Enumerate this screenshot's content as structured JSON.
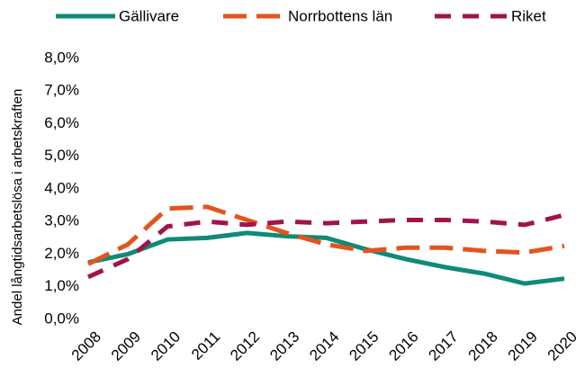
{
  "chart_data": {
    "type": "line",
    "ylabel": "Andel långtidsarbetslösa i arbetskraften",
    "categories": [
      "2008",
      "2009",
      "2010",
      "2011",
      "2012",
      "2013",
      "2014",
      "2015",
      "2016",
      "2017",
      "2018",
      "2019",
      "2020"
    ],
    "series": [
      {
        "name": "Gällivare",
        "color": "#0f8a77",
        "line_style": "solid",
        "values": [
          1.75,
          2.0,
          2.45,
          2.5,
          2.65,
          2.55,
          2.5,
          2.15,
          1.85,
          1.6,
          1.4,
          1.1,
          1.25
        ]
      },
      {
        "name": "Norrbottens län",
        "color": "#e2541f",
        "line_style": "long-dash",
        "values": [
          1.7,
          2.3,
          3.4,
          3.45,
          3.05,
          2.65,
          2.3,
          2.1,
          2.2,
          2.2,
          2.1,
          2.05,
          2.25
        ]
      },
      {
        "name": "Riket",
        "color": "#a1144b",
        "line_style": "dash",
        "values": [
          1.3,
          1.85,
          2.85,
          3.0,
          2.9,
          3.0,
          2.95,
          3.0,
          3.05,
          3.05,
          3.0,
          2.9,
          3.2
        ]
      }
    ],
    "ylim": [
      0,
      8
    ],
    "yticks": [
      {
        "value": 0,
        "label": "0,0%"
      },
      {
        "value": 1,
        "label": "1,0%"
      },
      {
        "value": 2,
        "label": "2,0%"
      },
      {
        "value": 3,
        "label": "3,0%"
      },
      {
        "value": 4,
        "label": "4,0%"
      },
      {
        "value": 5,
        "label": "5,0%"
      },
      {
        "value": 6,
        "label": "6,0%"
      },
      {
        "value": 7,
        "label": "7,0%"
      },
      {
        "value": 8,
        "label": "8,0%"
      }
    ],
    "grid": false,
    "legend": "top"
  }
}
